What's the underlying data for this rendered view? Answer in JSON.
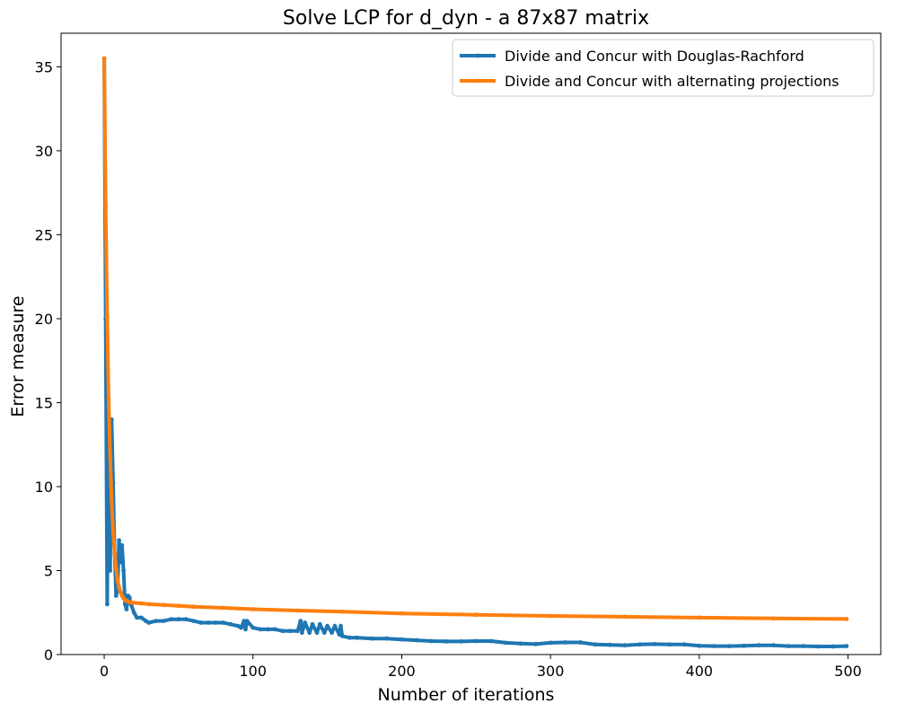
{
  "chart_data": {
    "type": "line",
    "title": "Solve LCP for d_dyn - a 87x87 matrix",
    "xlabel": "Number of iterations",
    "ylabel": "Error measure",
    "xlim": [
      -29,
      522
    ],
    "ylim": [
      0,
      37
    ],
    "xticks": [
      0,
      100,
      200,
      300,
      400,
      500
    ],
    "yticks": [
      0,
      5,
      10,
      15,
      20,
      25,
      30,
      35
    ],
    "grid": false,
    "legend_position": "top-right",
    "series": [
      {
        "name": "Divide and Concur with Douglas-Rachford",
        "color": "#1f77b4",
        "x": [
          0,
          1,
          2,
          3,
          4,
          5,
          6,
          7,
          8,
          9,
          10,
          11,
          12,
          13,
          14,
          15,
          16,
          17,
          18,
          20,
          22,
          25,
          28,
          30,
          35,
          40,
          45,
          50,
          55,
          60,
          65,
          70,
          75,
          80,
          85,
          90,
          92,
          94,
          95,
          96,
          100,
          105,
          110,
          115,
          120,
          125,
          130,
          132,
          133,
          135,
          138,
          140,
          143,
          145,
          148,
          150,
          153,
          155,
          158,
          159,
          160,
          165,
          170,
          180,
          190,
          200,
          210,
          220,
          230,
          240,
          250,
          260,
          270,
          280,
          290,
          300,
          310,
          320,
          330,
          340,
          350,
          360,
          370,
          380,
          390,
          400,
          410,
          420,
          430,
          440,
          450,
          460,
          470,
          480,
          490,
          499
        ],
        "y": [
          35.5,
          20.0,
          3.0,
          14.3,
          5.0,
          14.0,
          10.2,
          6.0,
          3.5,
          4.0,
          6.8,
          5.5,
          6.5,
          5.0,
          3.0,
          2.7,
          3.5,
          3.4,
          3.0,
          2.5,
          2.2,
          2.2,
          2.0,
          1.9,
          2.0,
          2.0,
          2.1,
          2.1,
          2.1,
          2.0,
          1.9,
          1.9,
          1.9,
          1.9,
          1.8,
          1.7,
          1.6,
          2.0,
          1.5,
          2.0,
          1.6,
          1.5,
          1.5,
          1.5,
          1.4,
          1.4,
          1.4,
          2.0,
          1.3,
          1.9,
          1.3,
          1.8,
          1.3,
          1.8,
          1.3,
          1.7,
          1.3,
          1.7,
          1.2,
          1.7,
          1.1,
          1.0,
          1.0,
          0.95,
          0.95,
          0.9,
          0.85,
          0.8,
          0.78,
          0.78,
          0.8,
          0.8,
          0.7,
          0.65,
          0.62,
          0.7,
          0.72,
          0.72,
          0.6,
          0.58,
          0.55,
          0.6,
          0.62,
          0.6,
          0.6,
          0.52,
          0.5,
          0.5,
          0.52,
          0.55,
          0.55,
          0.5,
          0.5,
          0.48,
          0.48,
          0.5
        ]
      },
      {
        "name": "Divide and Concur with alternating projections",
        "color": "#ff7f0e",
        "x": [
          0,
          1,
          2,
          3,
          4,
          5,
          6,
          7,
          8,
          9,
          10,
          11,
          12,
          13,
          14,
          15,
          16,
          17,
          18,
          20,
          25,
          30,
          40,
          50,
          60,
          80,
          100,
          130,
          160,
          200,
          250,
          300,
          350,
          400,
          450,
          499
        ],
        "y": [
          35.5,
          26.7,
          20.1,
          15.2,
          11.8,
          9.2,
          7.3,
          6.0,
          5.1,
          4.4,
          4.0,
          3.7,
          3.5,
          3.35,
          3.25,
          3.2,
          3.15,
          3.12,
          3.1,
          3.08,
          3.05,
          3.0,
          2.95,
          2.9,
          2.85,
          2.78,
          2.7,
          2.62,
          2.55,
          2.45,
          2.37,
          2.3,
          2.25,
          2.2,
          2.15,
          2.12
        ]
      }
    ]
  }
}
